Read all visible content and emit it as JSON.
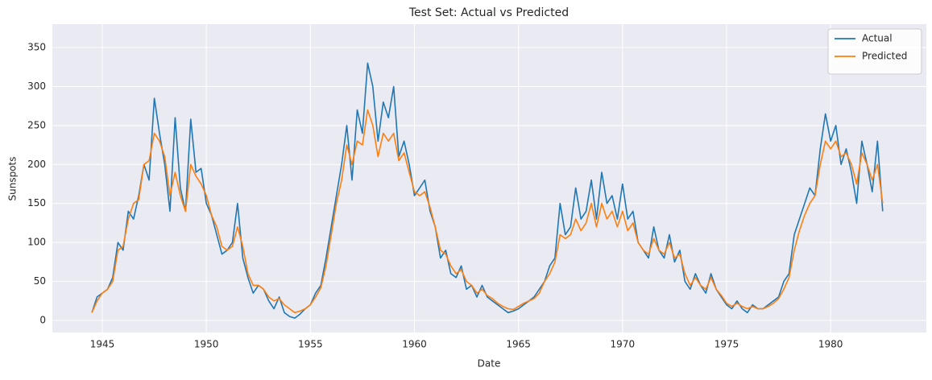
{
  "chart_data": {
    "type": "line",
    "title": "Test Set: Actual vs Predicted",
    "x_label": "Date",
    "y_label": "Sunspots",
    "x": [
      1944.5,
      1944.75,
      1945,
      1945.25,
      1945.5,
      1945.75,
      1946,
      1946.25,
      1946.5,
      1946.75,
      1947,
      1947.25,
      1947.5,
      1947.75,
      1948,
      1948.25,
      1948.5,
      1948.75,
      1949,
      1949.25,
      1949.5,
      1949.75,
      1950,
      1950.25,
      1950.5,
      1950.75,
      1951,
      1951.25,
      1951.5,
      1951.75,
      1952,
      1952.25,
      1952.5,
      1952.75,
      1953,
      1953.25,
      1953.5,
      1953.75,
      1954,
      1954.25,
      1954.5,
      1954.75,
      1955,
      1955.25,
      1955.5,
      1955.75,
      1956,
      1956.25,
      1956.5,
      1956.75,
      1957,
      1957.25,
      1957.5,
      1957.75,
      1958,
      1958.25,
      1958.5,
      1958.75,
      1959,
      1959.25,
      1959.5,
      1959.75,
      1960,
      1960.25,
      1960.5,
      1960.75,
      1961,
      1961.25,
      1961.5,
      1961.75,
      1962,
      1962.25,
      1962.5,
      1962.75,
      1963,
      1963.25,
      1963.5,
      1963.75,
      1964,
      1964.25,
      1964.5,
      1964.75,
      1965,
      1965.25,
      1965.5,
      1965.75,
      1966,
      1966.25,
      1966.5,
      1966.75,
      1967,
      1967.25,
      1967.5,
      1967.75,
      1968,
      1968.25,
      1968.5,
      1968.75,
      1969,
      1969.25,
      1969.5,
      1969.75,
      1970,
      1970.25,
      1970.5,
      1970.75,
      1971,
      1971.25,
      1971.5,
      1971.75,
      1972,
      1972.25,
      1972.5,
      1972.75,
      1973,
      1973.25,
      1973.5,
      1973.75,
      1974,
      1974.25,
      1974.5,
      1974.75,
      1975,
      1975.25,
      1975.5,
      1975.75,
      1976,
      1976.25,
      1976.5,
      1976.75,
      1977,
      1977.25,
      1977.5,
      1977.75,
      1978,
      1978.25,
      1978.5,
      1978.75,
      1979,
      1979.25,
      1979.5,
      1979.75,
      1980,
      1980.25,
      1980.5,
      1980.75,
      1981,
      1981.25,
      1981.5,
      1981.75,
      1982,
      1982.25,
      1982.5
    ],
    "series": [
      {
        "name": "Actual",
        "color": "#1f77b4",
        "values": [
          10,
          30,
          35,
          40,
          55,
          100,
          90,
          140,
          130,
          160,
          200,
          180,
          285,
          240,
          200,
          140,
          260,
          170,
          140,
          258,
          190,
          195,
          150,
          135,
          110,
          85,
          90,
          100,
          150,
          80,
          55,
          35,
          45,
          40,
          25,
          15,
          30,
          10,
          5,
          3,
          8,
          15,
          20,
          35,
          45,
          80,
          120,
          160,
          200,
          250,
          180,
          270,
          240,
          330,
          300,
          230,
          280,
          260,
          300,
          210,
          230,
          200,
          160,
          170,
          180,
          140,
          120,
          80,
          90,
          60,
          55,
          70,
          40,
          45,
          30,
          45,
          30,
          25,
          20,
          15,
          10,
          12,
          15,
          20,
          25,
          30,
          40,
          50,
          70,
          80,
          150,
          110,
          120,
          170,
          130,
          140,
          180,
          130,
          190,
          150,
          160,
          130,
          175,
          130,
          140,
          100,
          90,
          80,
          120,
          90,
          80,
          110,
          75,
          90,
          50,
          40,
          60,
          45,
          35,
          60,
          40,
          30,
          20,
          15,
          25,
          15,
          10,
          20,
          15,
          15,
          20,
          25,
          30,
          50,
          60,
          110,
          130,
          150,
          170,
          160,
          220,
          265,
          230,
          250,
          200,
          220,
          190,
          150,
          230,
          200,
          165,
          230,
          140
        ]
      },
      {
        "name": "Predicted",
        "color": "#ff7f0e",
        "values": [
          10,
          25,
          35,
          40,
          50,
          90,
          95,
          130,
          150,
          155,
          200,
          205,
          240,
          230,
          210,
          160,
          190,
          160,
          140,
          200,
          185,
          175,
          160,
          135,
          120,
          95,
          90,
          95,
          120,
          95,
          60,
          45,
          45,
          40,
          30,
          25,
          28,
          20,
          15,
          10,
          12,
          15,
          20,
          30,
          42,
          70,
          110,
          150,
          180,
          225,
          200,
          230,
          225,
          270,
          250,
          210,
          240,
          230,
          240,
          205,
          215,
          190,
          165,
          160,
          165,
          145,
          120,
          90,
          85,
          70,
          60,
          65,
          50,
          45,
          35,
          40,
          32,
          28,
          22,
          18,
          15,
          14,
          18,
          22,
          25,
          28,
          35,
          50,
          60,
          75,
          110,
          105,
          110,
          130,
          115,
          125,
          150,
          120,
          150,
          130,
          140,
          120,
          140,
          115,
          125,
          100,
          90,
          85,
          105,
          90,
          85,
          100,
          80,
          85,
          60,
          45,
          55,
          45,
          40,
          55,
          40,
          32,
          22,
          18,
          22,
          18,
          15,
          18,
          15,
          15,
          18,
          22,
          28,
          40,
          55,
          90,
          115,
          135,
          150,
          160,
          200,
          230,
          220,
          230,
          210,
          215,
          200,
          175,
          215,
          200,
          180,
          200,
          150
        ]
      }
    ],
    "xlim": [
      1942.6,
      1984.6
    ],
    "ylim": [
      -15.5,
      380
    ],
    "xticks": [
      1945,
      1950,
      1955,
      1960,
      1965,
      1970,
      1975,
      1980
    ],
    "yticks": [
      0,
      50,
      100,
      150,
      200,
      250,
      300,
      350
    ],
    "grid": true,
    "legend": "upper right"
  }
}
